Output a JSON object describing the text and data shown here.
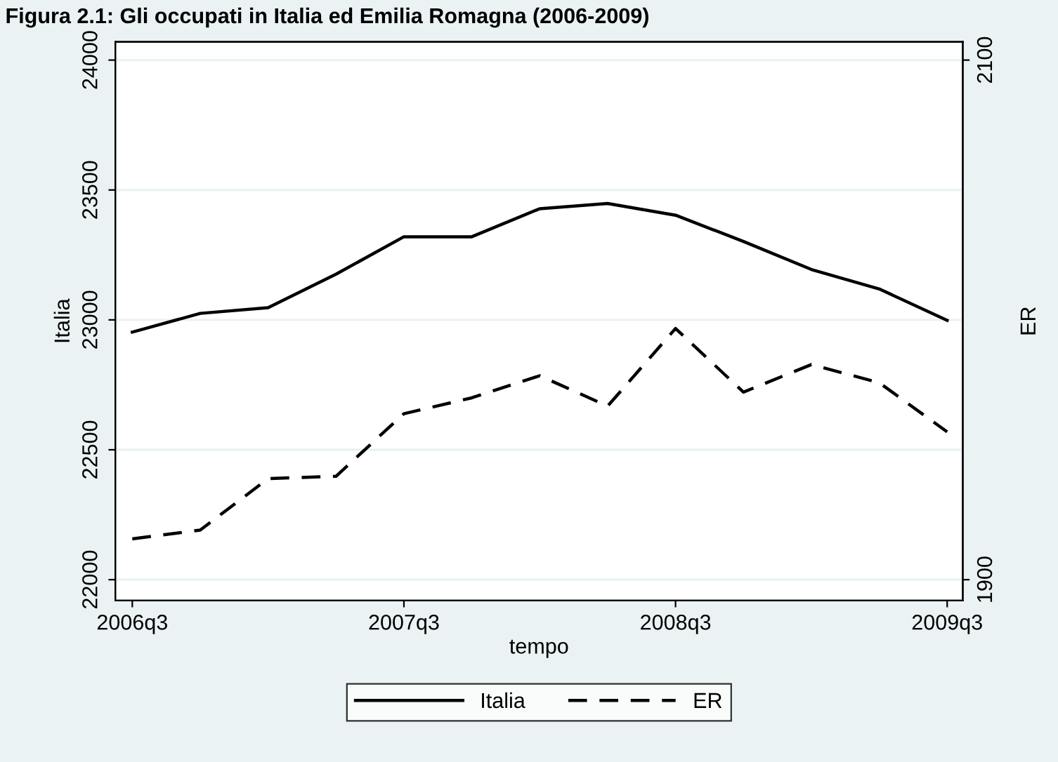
{
  "chart_data": {
    "type": "line",
    "title": "Figura 2.1: Gli occupati in Italia ed Emilia Romagna (2006-2009)",
    "xlabel": "tempo",
    "ylabel": "Italia",
    "y2label": "ER",
    "categories": [
      "2006q3",
      null,
      null,
      null,
      "2007q3",
      null,
      null,
      null,
      "2008q3",
      null,
      null,
      null,
      "2009q3"
    ],
    "series": [
      {
        "name": "Italia",
        "color": "#000000",
        "line_style": "solid",
        "values": [
          22953,
          23025,
          23047,
          23176,
          23320,
          23320,
          23428,
          23448,
          23403,
          23302,
          23194,
          23119,
          22998
        ]
      },
      {
        "name": "ER",
        "color": "#000000",
        "line_style": "dashed",
        "axis": "y2",
        "values": [
          1915.7,
          1919.1,
          1938.9,
          1939.8,
          1963.9,
          1970.0,
          1978.5,
          1966.8,
          1996.7,
          1972.2,
          1982.8,
          1975.8,
          1956.9
        ]
      }
    ],
    "ylim": [
      21920,
      24070
    ],
    "yticks": [
      22000,
      22500,
      23000,
      23500,
      24000
    ],
    "y2lim": [
      1892,
      2107
    ],
    "y2ticks": [
      1900,
      2100
    ],
    "grid": "y",
    "legend": "bottom",
    "marker": "none"
  }
}
